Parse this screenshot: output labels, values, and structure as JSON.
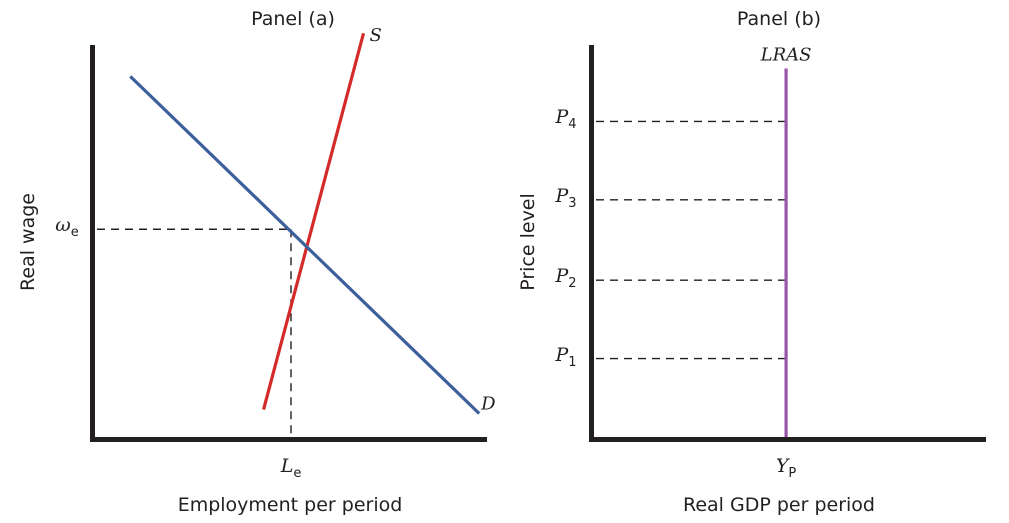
{
  "chart_data": [
    {
      "type": "line",
      "panel_title": "Panel (a)",
      "xlabel": "Employment per period",
      "ylabel": "Real wage",
      "xlim": [
        0,
        10
      ],
      "ylim": [
        0,
        10
      ],
      "series": [
        {
          "name": "S",
          "color": "#d42a2a",
          "points": [
            [
              4.3,
              0.7
            ],
            [
              6.85,
              10.3
            ]
          ]
        },
        {
          "name": "D",
          "color": "#3d5f9b",
          "points": [
            [
              0.9,
              9.2
            ],
            [
              9.8,
              0.6
            ]
          ]
        }
      ],
      "equilibrium": {
        "x": 5.0,
        "y": 5.3
      },
      "x_ticks": [
        {
          "value": 5.0,
          "label": "L",
          "sub": "e"
        }
      ],
      "y_ticks": [
        {
          "value": 5.3,
          "label": "ω",
          "sub": "e"
        }
      ]
    },
    {
      "type": "line",
      "panel_title": "Panel (b)",
      "xlabel": "Real GDP per period",
      "ylabel": "Price level",
      "xlim": [
        0,
        10
      ],
      "ylim": [
        0,
        10
      ],
      "series": [
        {
          "name": "LRAS",
          "color": "#9a55aa",
          "points": [
            [
              4.9,
              0
            ],
            [
              4.9,
              9.4
            ]
          ]
        }
      ],
      "y_ticks": [
        {
          "value": 2.0,
          "label": "P",
          "sub": "1"
        },
        {
          "value": 4.0,
          "label": "P",
          "sub": "2"
        },
        {
          "value": 6.05,
          "label": "P",
          "sub": "3"
        },
        {
          "value": 8.05,
          "label": "P",
          "sub": "4"
        }
      ],
      "x_ticks": [
        {
          "value": 4.9,
          "label": "Y",
          "sub": "P"
        }
      ]
    }
  ]
}
